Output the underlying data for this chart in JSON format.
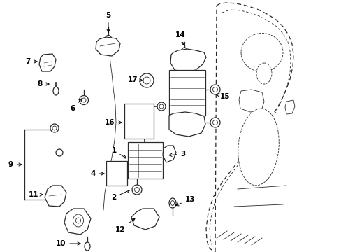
{
  "background_color": "#ffffff",
  "line_color": "#2a2a2a",
  "label_color": "#000000",
  "figsize": [
    4.89,
    3.6
  ],
  "dpi": 100,
  "label_fontsize": 7.5
}
